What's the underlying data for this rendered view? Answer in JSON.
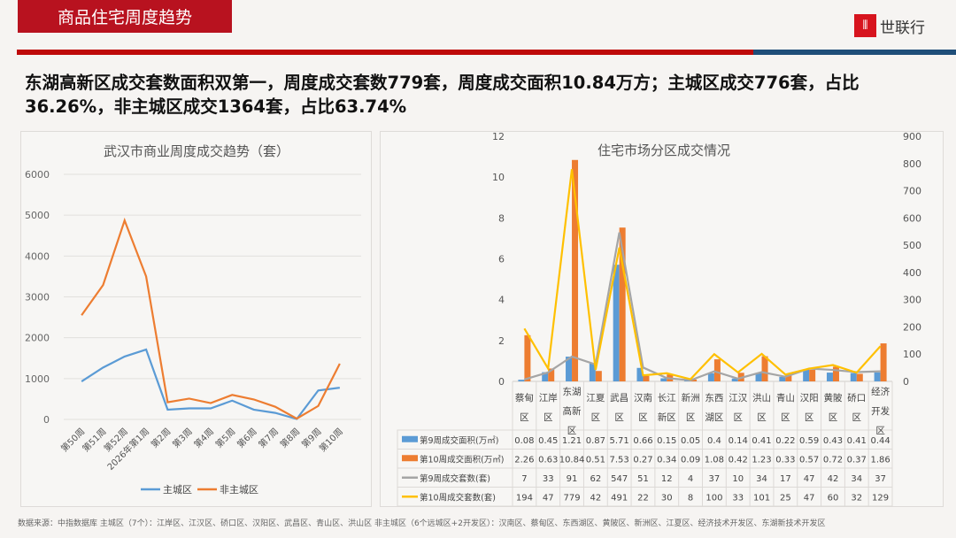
{
  "header": {
    "section_title": "商品住宅周度趋势",
    "logo_text": "世联行",
    "logo_icon": "shilianhang-logo-icon",
    "brand_red": "#b8121f",
    "brand_blue": "#1f4e79"
  },
  "headline": "东湖高新区成交套数面积双第一，周度成交套数779套，周度成交面积10.84万方；主城区成交776套，占比36.26%，非主城区成交1364套，占比63.74%",
  "footer": "数据来源：中指数据库 主城区（7个）：江岸区、江汉区、硚口区、汉阳区、武昌区、青山区、洪山区    非主城区（6个远城区+2开发区）：汉南区、蔡甸区、东西湖区、黄陂区、新洲区、江夏区、经济技术开发区、东湖新技术开发区",
  "chart_data": [
    {
      "type": "line",
      "title": "武汉市商业周度成交趋势（套）",
      "categories": [
        "第50周",
        "第51周",
        "第52周",
        "2026年第1周",
        "第2周",
        "第3周",
        "第4周",
        "第5周",
        "第6周",
        "第7周",
        "第8周",
        "第9周",
        "第10周"
      ],
      "ylim": [
        0,
        6000
      ],
      "yticks": [
        "0",
        "1000",
        "2000",
        "3000",
        "4000",
        "5000",
        "6000"
      ],
      "grid": true,
      "legend": "bottom",
      "series": [
        {
          "name": "主城区",
          "color": "#5b9bd5",
          "values": [
            930,
            1270,
            1540,
            1710,
            240,
            270,
            270,
            460,
            240,
            160,
            10,
            710,
            776
          ]
        },
        {
          "name": "非主城区",
          "color": "#ed7d31",
          "values": [
            2550,
            3290,
            4870,
            3500,
            420,
            510,
            400,
            600,
            490,
            310,
            20,
            330,
            1364
          ]
        }
      ]
    },
    {
      "type": "bar+line",
      "title": "住宅市场分区成交情况",
      "categories": [
        "蔡甸区",
        "江岸区",
        "东湖高新区",
        "江夏区",
        "武昌区",
        "汉南区",
        "长江新区",
        "新洲区",
        "东西湖区",
        "江汉区",
        "洪山区",
        "青山区",
        "汉阳区",
        "黄陂区",
        "硚口区",
        "经济开发区"
      ],
      "category_lines": [
        [
          "蔡甸",
          "区"
        ],
        [
          "江岸",
          "区"
        ],
        [
          "东湖",
          "高新",
          "区"
        ],
        [
          "江夏",
          "区"
        ],
        [
          "武昌",
          "区"
        ],
        [
          "汉南",
          "区"
        ],
        [
          "长江",
          "新区"
        ],
        [
          "新洲",
          "区"
        ],
        [
          "东西",
          "湖区"
        ],
        [
          "江汉",
          "区"
        ],
        [
          "洪山",
          "区"
        ],
        [
          "青山",
          "区"
        ],
        [
          "汉阳",
          "区"
        ],
        [
          "黄陂",
          "区"
        ],
        [
          "硚口",
          "区"
        ],
        [
          "经济",
          "开发",
          "区"
        ]
      ],
      "ylim": [
        0,
        12
      ],
      "yticks": [
        "0",
        "2",
        "4",
        "6",
        "8",
        "10",
        "12"
      ],
      "y2lim": [
        0,
        900
      ],
      "y2ticks": [
        "0",
        "100",
        "200",
        "300",
        "400",
        "500",
        "600",
        "700",
        "800",
        "900"
      ],
      "data_table": true,
      "series": [
        {
          "name": "第9周成交面积(万㎡)",
          "kind": "bar",
          "axis": "left",
          "color": "#5b9bd5",
          "values": [
            0.08,
            0.45,
            1.21,
            0.87,
            5.71,
            0.66,
            0.15,
            0.05,
            0.4,
            0.14,
            0.41,
            0.22,
            0.59,
            0.43,
            0.41,
            0.44
          ]
        },
        {
          "name": "第10周成交面积(万㎡)",
          "kind": "bar",
          "axis": "left",
          "color": "#ed7d31",
          "values": [
            2.26,
            0.63,
            10.84,
            0.51,
            7.53,
            0.27,
            0.34,
            0.09,
            1.08,
            0.42,
            1.23,
            0.33,
            0.57,
            0.72,
            0.37,
            1.86
          ]
        },
        {
          "name": "第9周成交套数(套)",
          "kind": "line",
          "axis": "right",
          "color": "#a5a5a5",
          "values": [
            7,
            33,
            91,
            62,
            547,
            51,
            12,
            4,
            37,
            10,
            34,
            17,
            47,
            42,
            34,
            37
          ]
        },
        {
          "name": "第10周成交套数(套)",
          "kind": "line",
          "axis": "right",
          "color": "#ffc000",
          "values": [
            194,
            47,
            779,
            42,
            491,
            22,
            30,
            8,
            100,
            33,
            101,
            25,
            47,
            60,
            32,
            129
          ]
        }
      ]
    }
  ]
}
